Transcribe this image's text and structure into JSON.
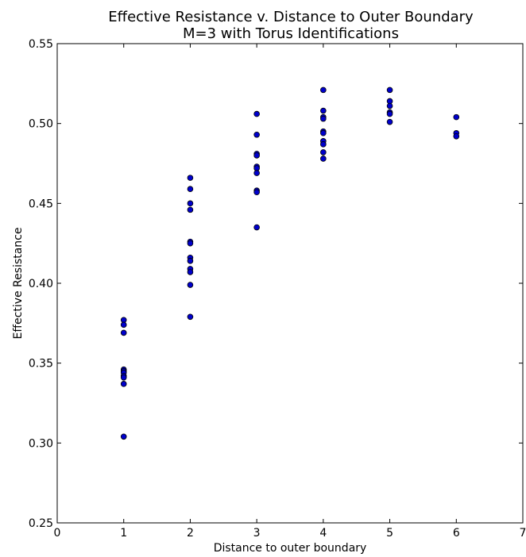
{
  "chart_data": {
    "type": "scatter",
    "title": "Effective Resistance v. Distance to Outer Boundary",
    "subtitle": "M=3 with Torus Identifications",
    "xlabel": "Distance to outer boundary",
    "ylabel": "Effective Resistance",
    "xlim": [
      0,
      7
    ],
    "ylim": [
      0.25,
      0.55
    ],
    "xticks": [
      "0",
      "1",
      "2",
      "3",
      "4",
      "5",
      "6",
      "7"
    ],
    "yticks": [
      "0.25",
      "0.30",
      "0.35",
      "0.40",
      "0.45",
      "0.50",
      "0.55"
    ],
    "grid": false,
    "marker_color": "#0000cc",
    "points": [
      [
        1,
        0.377
      ],
      [
        1,
        0.374
      ],
      [
        1,
        0.369
      ],
      [
        1,
        0.346
      ],
      [
        1,
        0.345
      ],
      [
        1,
        0.344
      ],
      [
        1,
        0.342
      ],
      [
        1,
        0.341
      ],
      [
        1,
        0.337
      ],
      [
        1,
        0.304
      ],
      [
        2,
        0.466
      ],
      [
        2,
        0.459
      ],
      [
        2,
        0.45
      ],
      [
        2,
        0.446
      ],
      [
        2,
        0.426
      ],
      [
        2,
        0.425
      ],
      [
        2,
        0.416
      ],
      [
        2,
        0.414
      ],
      [
        2,
        0.409
      ],
      [
        2,
        0.407
      ],
      [
        2,
        0.399
      ],
      [
        2,
        0.379
      ],
      [
        3,
        0.506
      ],
      [
        3,
        0.493
      ],
      [
        3,
        0.481
      ],
      [
        3,
        0.48
      ],
      [
        3,
        0.473
      ],
      [
        3,
        0.472
      ],
      [
        3,
        0.469
      ],
      [
        3,
        0.458
      ],
      [
        3,
        0.457
      ],
      [
        3,
        0.435
      ],
      [
        4,
        0.521
      ],
      [
        4,
        0.508
      ],
      [
        4,
        0.504
      ],
      [
        4,
        0.503
      ],
      [
        4,
        0.495
      ],
      [
        4,
        0.494
      ],
      [
        4,
        0.489
      ],
      [
        4,
        0.487
      ],
      [
        4,
        0.482
      ],
      [
        4,
        0.478
      ],
      [
        5,
        0.521
      ],
      [
        5,
        0.514
      ],
      [
        5,
        0.511
      ],
      [
        5,
        0.507
      ],
      [
        5,
        0.506
      ],
      [
        5,
        0.501
      ],
      [
        6,
        0.504
      ],
      [
        6,
        0.494
      ],
      [
        6,
        0.492
      ]
    ]
  }
}
